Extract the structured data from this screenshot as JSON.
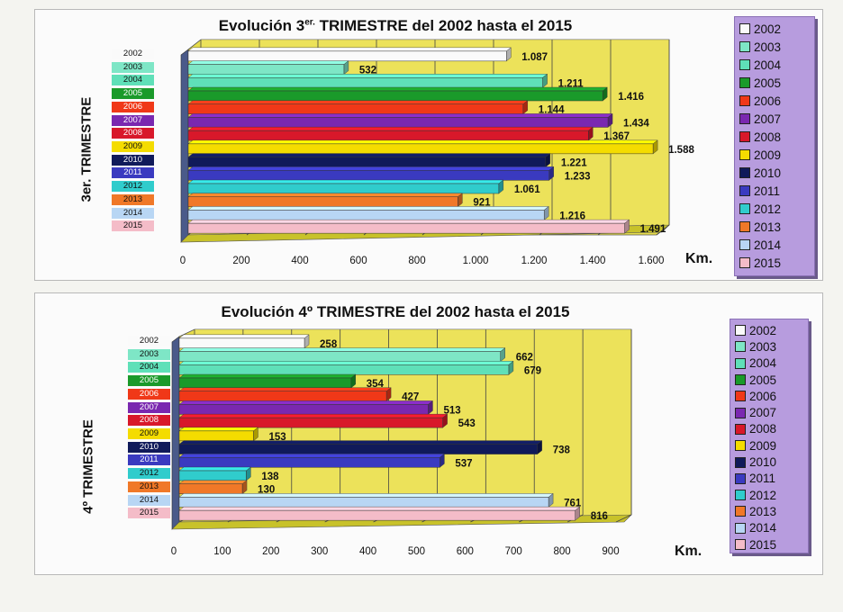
{
  "colors": [
    "#fafafa",
    "#7ee6c6",
    "#5fe0b8",
    "#1a9a2a",
    "#f03818",
    "#7a28b0",
    "#d8182a",
    "#f4dc00",
    "#101a5a",
    "#3a3ac0",
    "#30cccc",
    "#f07828",
    "#b8d6f4",
    "#f4bcc8"
  ],
  "years": [
    "2002",
    "2003",
    "2004",
    "2005",
    "2006",
    "2007",
    "2008",
    "2009",
    "2010",
    "2011",
    "2012",
    "2013",
    "2014",
    "2015"
  ],
  "charts": [
    {
      "title_main": "Evolución 3",
      "title_sup": "er.",
      "title_rest": " TRIMESTRE del 2002 hasta el 2015",
      "ylabel": "3er. TRIMESTRE",
      "unit": "Km."
    },
    {
      "title_main": "Evolución 4º TRIMESTRE del 2002 hasta el 2015",
      "title_sup": "",
      "title_rest": "",
      "ylabel": "4º TRIMESTRE",
      "unit": "Km."
    }
  ],
  "chart_data": [
    {
      "type": "bar",
      "orientation": "horizontal",
      "title": "Evolución 3er. TRIMESTRE del 2002 hasta el 2015",
      "ylabel": "3er. TRIMESTRE",
      "xlabel": "Km.",
      "categories": [
        "2002",
        "2003",
        "2004",
        "2005",
        "2006",
        "2007",
        "2008",
        "2009",
        "2010",
        "2011",
        "2012",
        "2013",
        "2014",
        "2015"
      ],
      "values": [
        1087,
        532,
        1211,
        1416,
        1144,
        1434,
        1367,
        1588,
        1221,
        1233,
        1061,
        921,
        1216,
        1491
      ],
      "value_labels": [
        "1.087",
        "532",
        "1.211",
        "1.416",
        "1.144",
        "1.434",
        "1.367",
        "1.588",
        "1.221",
        "1.233",
        "1.061",
        "921",
        "1.216",
        "1.491"
      ],
      "xlim": [
        0,
        1600
      ],
      "xticks": [
        "0",
        "200",
        "400",
        "600",
        "800",
        "1.000",
        "1.200",
        "1.400",
        "1.600"
      ],
      "grid": true,
      "legend": "right"
    },
    {
      "type": "bar",
      "orientation": "horizontal",
      "title": "Evolución 4º TRIMESTRE del 2002 hasta el 2015",
      "ylabel": "4º TRIMESTRE",
      "xlabel": "Km.",
      "categories": [
        "2002",
        "2003",
        "2004",
        "2005",
        "2006",
        "2007",
        "2008",
        "2009",
        "2010",
        "2011",
        "2012",
        "2013",
        "2014",
        "2015"
      ],
      "values": [
        258,
        662,
        679,
        354,
        427,
        513,
        543,
        153,
        738,
        537,
        138,
        130,
        761,
        816
      ],
      "value_labels": [
        "258",
        "662",
        "679",
        "354",
        "427",
        "513",
        "543",
        "153",
        "738",
        "537",
        "138",
        "130",
        "761",
        "816"
      ],
      "xlim": [
        0,
        900
      ],
      "xticks": [
        "0",
        "100",
        "200",
        "300",
        "400",
        "500",
        "600",
        "700",
        "800",
        "900"
      ],
      "grid": true,
      "legend": "right"
    }
  ]
}
